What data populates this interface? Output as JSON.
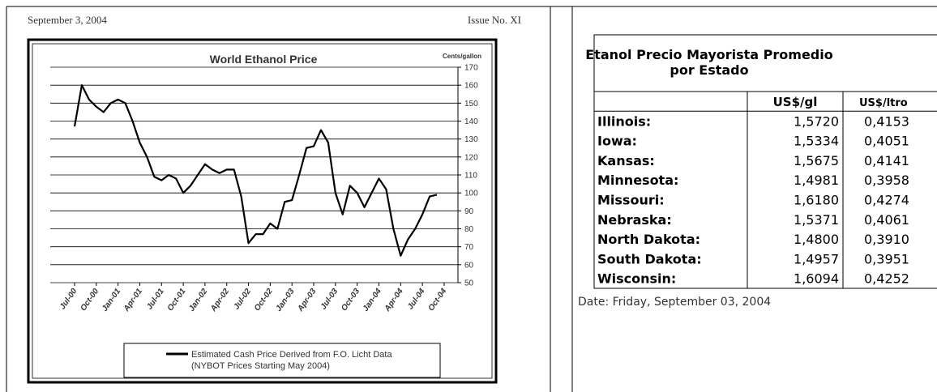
{
  "header": {
    "date": "September 3, 2004",
    "issue": "Issue No. XI"
  },
  "chart_data": {
    "type": "line",
    "title": "World Ethanol Price",
    "y_unit_label": "Cents/gallon",
    "x": [
      "Jul-00",
      "Aug-00",
      "Sep-00",
      "Oct-00",
      "Nov-00",
      "Dec-00",
      "Jan-01",
      "Feb-01",
      "Mar-01",
      "Apr-01",
      "May-01",
      "Jun-01",
      "Jul-01",
      "Aug-01",
      "Sep-01",
      "Oct-01",
      "Nov-01",
      "Dec-01",
      "Jan-02",
      "Feb-02",
      "Mar-02",
      "Apr-02",
      "May-02",
      "Jun-02",
      "Jul-02",
      "Aug-02",
      "Sep-02",
      "Oct-02",
      "Nov-02",
      "Dec-02",
      "Jan-03",
      "Feb-03",
      "Mar-03",
      "Apr-03",
      "May-03",
      "Jun-03",
      "Jul-03",
      "Aug-03",
      "Sep-03",
      "Oct-03",
      "Nov-03",
      "Dec-03",
      "Jan-04",
      "Feb-04",
      "Mar-04",
      "Apr-04",
      "May-04",
      "Jun-04",
      "Jul-04",
      "Aug-04",
      "Sep-04",
      "Oct-04"
    ],
    "xticks": [
      "Jul-00",
      "Oct-00",
      "Jan-01",
      "Apr-01",
      "Jul-01",
      "Oct-01",
      "Jan-02",
      "Apr-02",
      "Jul-02",
      "Oct-02",
      "Jan-03",
      "Apr-03",
      "Jul-03",
      "Oct-03",
      "Jan-04",
      "Apr-04",
      "Jul-04",
      "Oct-04"
    ],
    "series": [
      {
        "name": "Estimated Cash Price Derived from F.O. Licht Data",
        "color": "#000000",
        "values": [
          137,
          160,
          152,
          148,
          145,
          150,
          152,
          150,
          140,
          128,
          120,
          109,
          107,
          110,
          108,
          100,
          104,
          110,
          116,
          113,
          111,
          113,
          113,
          98,
          72,
          77,
          77,
          83,
          80,
          95,
          96,
          110,
          125,
          126,
          135,
          128,
          100,
          88,
          104,
          100,
          92,
          100,
          108,
          102,
          80,
          65,
          74,
          80,
          88,
          98,
          99,
          null
        ]
      }
    ],
    "legend_note": "(NYBOT Prices Starting May 2004)",
    "ylim": [
      50,
      170
    ],
    "yticks": [
      50,
      60,
      70,
      80,
      90,
      100,
      110,
      120,
      130,
      140,
      150,
      160,
      170
    ],
    "grid": true
  },
  "table": {
    "title_lines": [
      "Etanol Precio Mayorista Promedio",
      "por Estado"
    ],
    "headers": [
      "US$/gl",
      "US$/ltro"
    ],
    "rows": [
      [
        "Illinois:",
        "1,5720",
        "0,4153"
      ],
      [
        "Iowa:",
        "1,5334",
        "0,4051"
      ],
      [
        "Kansas:",
        "1,5675",
        "0,4141"
      ],
      [
        "Minnesota:",
        "1,4981",
        "0,3958"
      ],
      [
        "Missouri:",
        "1,6180",
        "0,4274"
      ],
      [
        "Nebraska:",
        "1,5371",
        "0,4061"
      ],
      [
        "North Dakota:",
        "1,4800",
        "0,3910"
      ],
      [
        "South Dakota:",
        "1,4957",
        "0,3951"
      ],
      [
        "Wisconsin:",
        "1,6094",
        "0,4252"
      ]
    ],
    "footer": "Date: Friday, September 03, 2004"
  }
}
